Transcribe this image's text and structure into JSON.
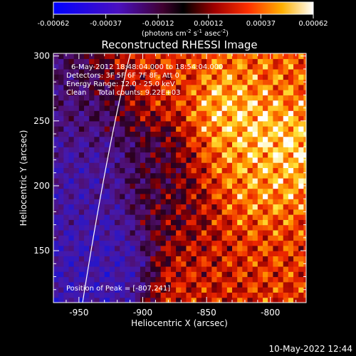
{
  "colorbar": {
    "tick_labels": [
      "-0.00062",
      "-0.00037",
      "-0.00012",
      "0.00012",
      "0.00037",
      "0.00062"
    ],
    "tick_values": [
      -0.00062,
      -0.00037,
      -0.00012,
      0.00012,
      0.00037,
      0.00062
    ],
    "unit_main": "(photons cm",
    "unit_exp1": "-2",
    "unit_mid1": " s",
    "unit_exp2": "-1",
    "unit_mid2": " asec",
    "unit_exp3": "-2",
    "unit_end": ")",
    "range": [
      -0.00062,
      0.00062
    ]
  },
  "chart_data": {
    "type": "heatmap",
    "title": "Reconstructed RHESSI Image",
    "xlabel": "Heliocentric X (arcsec)",
    "ylabel": "Heliocentric Y (arcsec)",
    "xlim": [
      -970,
      -772
    ],
    "ylim": [
      110,
      302
    ],
    "x_ticks": [
      -950,
      -900,
      -850,
      -800
    ],
    "y_ticks": [
      150,
      200,
      250,
      300
    ],
    "annotations": [
      "6-May-2012 18:48:04.000 to 18:54:04.000",
      "Detectors: 3F 5F 6F 7F 8F, Att 0",
      "Energy Range: 12.0 - 25.0 keV",
      "Clean     Total counts: 9.22E+03"
    ],
    "peak_label": "Position of Peak = [-807,241]",
    "peak": [
      -807,
      241
    ],
    "limb": "solar limb arc",
    "colormap": "blue-purple-red-yellow-white",
    "intensity_regions": [
      {
        "x": -940,
        "y": 270,
        "level": -0.3
      },
      {
        "x": -950,
        "y": 200,
        "level": -0.5
      },
      {
        "x": -935,
        "y": 150,
        "level": -0.6
      },
      {
        "x": -905,
        "y": 290,
        "level": 0.45
      },
      {
        "x": -880,
        "y": 200,
        "level": -0.1
      },
      {
        "x": -860,
        "y": 180,
        "level": 0.2
      },
      {
        "x": -830,
        "y": 215,
        "level": 0.6
      },
      {
        "x": -808,
        "y": 240,
        "level": 0.95
      },
      {
        "x": -815,
        "y": 200,
        "level": 0.75
      },
      {
        "x": -800,
        "y": 150,
        "level": 0.45
      },
      {
        "x": -790,
        "y": 280,
        "level": 0.55
      },
      {
        "x": -850,
        "y": 130,
        "level": 0.35
      }
    ]
  },
  "footer": {
    "timestamp": "10-May-2022 12:44"
  }
}
